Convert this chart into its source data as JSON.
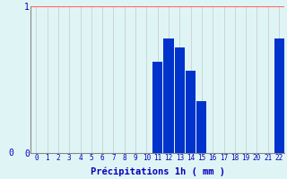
{
  "xlabel": "Précipitations 1h ( mm )",
  "categories": [
    0,
    1,
    2,
    3,
    4,
    5,
    6,
    7,
    8,
    9,
    10,
    11,
    12,
    13,
    14,
    15,
    16,
    17,
    18,
    19,
    20,
    21,
    22
  ],
  "values": [
    0,
    0,
    0,
    0,
    0,
    0,
    0,
    0,
    0,
    0,
    0,
    0.62,
    0.78,
    0.72,
    0.56,
    0.35,
    0,
    0,
    0,
    0,
    0,
    0,
    0.78
  ],
  "bar_color": "#0033cc",
  "bg_color": "#dff5f5",
  "grid_color_v": "#c8c8c8",
  "grid_color_h": "#ff6666",
  "axis_color": "#888888",
  "text_color": "#0000bb",
  "ylim": [
    0,
    1.0
  ],
  "yticks": [
    0,
    1
  ],
  "xlabel_fontsize": 7.5,
  "tick_fontsize": 5.5
}
